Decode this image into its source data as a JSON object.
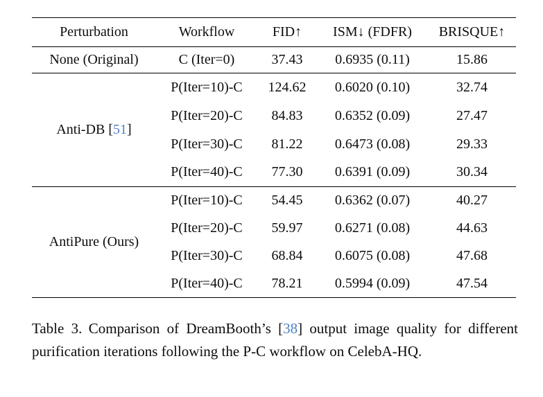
{
  "colors": {
    "background": "#ffffff",
    "text": "#0c0c0c",
    "rule": "#000000",
    "citation_blue": "#4d80c4"
  },
  "table": {
    "columns": [
      "Perturbation",
      "Workflow",
      "FID↑",
      "ISM↓ (FDFR)",
      "BRISQUE↑"
    ],
    "citation_brackets": {
      "open": "[",
      "close": "]"
    },
    "groups": [
      {
        "perturbation": "None (Original)",
        "bold": false,
        "cite": "",
        "rows": [
          {
            "workflow": "C (Iter=0)",
            "fid": "37.43",
            "ism": "0.6935 (0.11)",
            "brisque": "15.86"
          }
        ]
      },
      {
        "perturbation": "Anti-DB",
        "bold": false,
        "cite": "51",
        "rows": [
          {
            "workflow": "P(Iter=10)-C",
            "fid": "124.62",
            "ism": "0.6020 (0.10)",
            "brisque": "32.74"
          },
          {
            "workflow": "P(Iter=20)-C",
            "fid": "84.83",
            "ism": "0.6352 (0.09)",
            "brisque": "27.47"
          },
          {
            "workflow": "P(Iter=30)-C",
            "fid": "81.22",
            "ism": "0.6473 (0.08)",
            "brisque": "29.33"
          },
          {
            "workflow": "P(Iter=40)-C",
            "fid": "77.30",
            "ism": "0.6391 (0.09)",
            "brisque": "30.34"
          }
        ]
      },
      {
        "perturbation": "AntiPure (Ours)",
        "bold": true,
        "cite": "",
        "rows": [
          {
            "workflow": "P(Iter=10)-C",
            "fid": "54.45",
            "ism": "0.6362 (0.07)",
            "brisque": "40.27"
          },
          {
            "workflow": "P(Iter=20)-C",
            "fid": "59.97",
            "ism": "0.6271 (0.08)",
            "brisque": "44.63"
          },
          {
            "workflow": "P(Iter=30)-C",
            "fid": "68.84",
            "ism": "0.6075 (0.08)",
            "brisque": "47.68"
          },
          {
            "workflow": "P(Iter=40)-C",
            "fid": "78.21",
            "ism": "0.5994 (0.09)",
            "brisque": "47.54"
          }
        ]
      }
    ]
  },
  "caption": {
    "label": "Table 3.",
    "text_before_cite": "Comparison of DreamBooth’s ",
    "cite": "38",
    "text_after_cite": " output image quality for different purification iterations following the P-C workflow on CelebA-HQ."
  }
}
